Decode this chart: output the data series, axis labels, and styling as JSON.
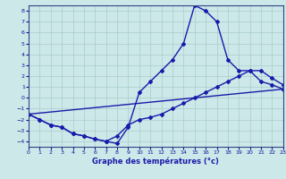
{
  "xlabel": "Graphe des températures (°c)",
  "background_color": "#cce8e8",
  "grid_color": "#aacccc",
  "line_color": "#1a1aaa",
  "xlim": [
    0,
    23
  ],
  "ylim": [
    -4.5,
    8.5
  ],
  "xticks": [
    0,
    1,
    2,
    3,
    4,
    5,
    6,
    7,
    8,
    9,
    10,
    11,
    12,
    13,
    14,
    15,
    16,
    17,
    18,
    19,
    20,
    21,
    22,
    23
  ],
  "yticks": [
    -4,
    -3,
    -2,
    -1,
    0,
    1,
    2,
    3,
    4,
    5,
    6,
    7,
    8
  ],
  "curve_main_x": [
    0,
    1,
    2,
    3,
    4,
    5,
    6,
    7,
    8,
    9,
    10,
    11,
    12,
    13,
    14,
    15,
    16,
    17,
    18,
    19,
    20,
    21,
    22,
    23
  ],
  "curve_main_y": [
    -1.5,
    -2.0,
    -2.5,
    -2.7,
    -3.3,
    -3.5,
    -3.8,
    -4.0,
    -4.2,
    -2.7,
    0.5,
    1.5,
    2.5,
    3.5,
    5.0,
    8.5,
    8.0,
    7.0,
    3.5,
    2.5,
    2.5,
    1.5,
    1.2,
    0.8
  ],
  "curve_min_x": [
    0,
    1,
    2,
    3,
    4,
    5,
    6,
    7,
    8,
    9,
    10,
    11,
    12,
    13,
    14,
    15,
    16,
    17,
    18,
    19,
    20,
    21,
    22,
    23
  ],
  "curve_min_y": [
    -1.5,
    -2.0,
    -2.5,
    -2.7,
    -3.3,
    -3.5,
    -3.8,
    -4.0,
    -3.5,
    -2.5,
    -2.0,
    -1.8,
    -1.5,
    -1.0,
    -0.5,
    0.0,
    0.5,
    1.0,
    1.5,
    2.0,
    2.5,
    2.5,
    1.8,
    1.2
  ],
  "curve_trend_x": [
    0,
    23
  ],
  "curve_trend_y": [
    -1.5,
    0.8
  ]
}
